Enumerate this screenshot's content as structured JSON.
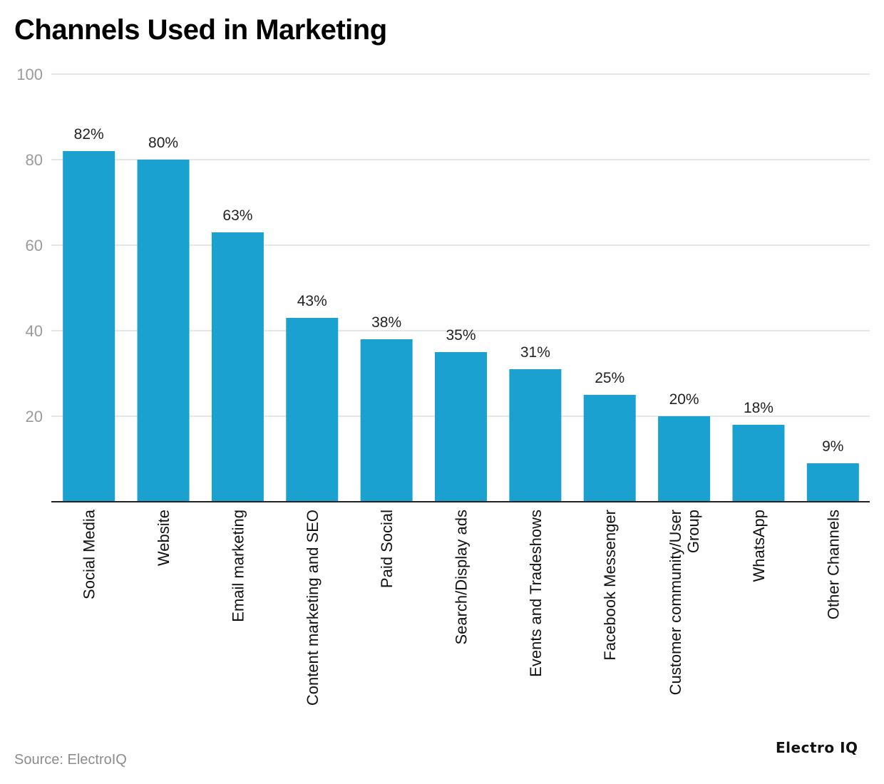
{
  "chart_data": {
    "type": "bar",
    "title": "Channels Used in Marketing",
    "xlabel": "",
    "ylabel": "",
    "ylim": [
      0,
      100
    ],
    "yticks": [
      20,
      40,
      60,
      80,
      100
    ],
    "grid": true,
    "categories": [
      "Social Media",
      "Website",
      "Email marketing",
      "Content marketing and SEO",
      "Paid Social",
      "Search/Display ads",
      "Events and Tradeshows",
      "Facebook Messenger",
      "Customer community/User Group",
      "WhatsApp",
      "Other Channels"
    ],
    "values": [
      82,
      80,
      63,
      43,
      38,
      35,
      31,
      25,
      20,
      18,
      9
    ],
    "value_labels": [
      "82%",
      "80%",
      "63%",
      "43%",
      "38%",
      "35%",
      "31%",
      "25%",
      "20%",
      "18%",
      "9%"
    ],
    "bar_color": "#1ba1cf"
  },
  "footer": {
    "source": "Source: ElectroIQ",
    "brand": "Electro IQ"
  },
  "colors": {
    "bar": "#1ba1cf",
    "grid": "#dedede",
    "tick_text": "#9a9a9a",
    "baseline": "#222222"
  }
}
